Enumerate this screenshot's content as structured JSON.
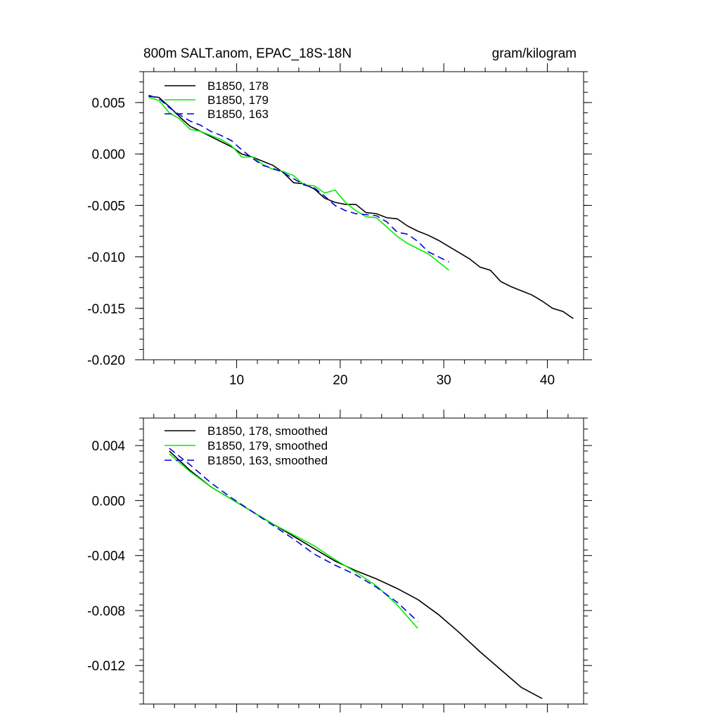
{
  "chart_data": [
    {
      "type": "line",
      "title": "800m SALT.anom, EPAC_18S-18N",
      "units": "gram/kilogram",
      "xlabel": "",
      "ylabel": "",
      "xlim": [
        1,
        43.5
      ],
      "ylim": [
        -0.02,
        0.008
      ],
      "xticks": [
        10,
        20,
        30,
        40
      ],
      "xtick_labels": [
        "10",
        "20",
        "30",
        "40"
      ],
      "yticks": [
        0.005,
        0.0,
        -0.005,
        -0.01,
        -0.015,
        -0.02
      ],
      "ytick_labels": [
        "0.005",
        "0.000",
        "-0.005",
        "-0.010",
        "-0.015",
        "-0.020"
      ],
      "legend_position": "top-left",
      "series": [
        {
          "name": "B1850, 178",
          "color": "#000000",
          "dash": "solid",
          "x": [
            1.5,
            2.5,
            3.5,
            4.5,
            5.5,
            6.5,
            7.5,
            8.5,
            9.5,
            10.5,
            11.5,
            12.5,
            13.5,
            14.5,
            15.5,
            16.5,
            17.5,
            18.5,
            19.5,
            20.5,
            21.5,
            22.5,
            23.5,
            24.5,
            25.5,
            26.5,
            27.5,
            28.5,
            29.5,
            30.5,
            31.5,
            32.5,
            33.5,
            34.5,
            35.5,
            36.5,
            37.5,
            38.5,
            39.5,
            40.5,
            41.5,
            42.5
          ],
          "values": [
            0.0056,
            0.0055,
            0.0046,
            0.0036,
            0.0027,
            0.0022,
            0.0017,
            0.0012,
            0.0007,
            0.0,
            -0.0003,
            -0.0007,
            -0.0011,
            -0.0018,
            -0.0028,
            -0.0029,
            -0.0034,
            -0.0043,
            -0.0047,
            -0.0049,
            -0.0049,
            -0.0057,
            -0.0058,
            -0.0062,
            -0.0063,
            -0.007,
            -0.0075,
            -0.0079,
            -0.0084,
            -0.009,
            -0.0096,
            -0.0102,
            -0.011,
            -0.0113,
            -0.0124,
            -0.0129,
            -0.0133,
            -0.0137,
            -0.0143,
            -0.015,
            -0.0153,
            -0.016
          ]
        },
        {
          "name": "B1850, 179",
          "color": "#00ee00",
          "dash": "solid",
          "x": [
            1.5,
            2.5,
            3.5,
            4.5,
            5.5,
            6.5,
            7.5,
            8.5,
            9.5,
            10.5,
            11.5,
            12.5,
            13.5,
            14.5,
            15.5,
            16.5,
            17.5,
            18.5,
            19.5,
            20.5,
            21.5,
            22.5,
            23.5,
            24.5,
            25.5,
            26.5,
            27.5,
            28.5,
            29.5,
            30.5
          ],
          "values": [
            0.0055,
            0.0052,
            0.004,
            0.0034,
            0.0024,
            0.0022,
            0.0018,
            0.0014,
            0.0008,
            -0.0003,
            -0.0003,
            -0.001,
            -0.0015,
            -0.0017,
            -0.0021,
            -0.003,
            -0.0031,
            -0.0038,
            -0.0035,
            -0.0047,
            -0.0055,
            -0.0061,
            -0.0062,
            -0.0071,
            -0.008,
            -0.0087,
            -0.0092,
            -0.0097,
            -0.0105,
            -0.0113
          ]
        },
        {
          "name": "B1850, 163",
          "color": "#0000dd",
          "dash": "dashed",
          "x": [
            1.5,
            2.5,
            3.5,
            4.5,
            5.5,
            6.5,
            7.5,
            8.5,
            9.5,
            10.5,
            11.5,
            12.5,
            13.5,
            14.5,
            15.5,
            16.5,
            17.5,
            18.5,
            19.5,
            20.5,
            21.5,
            22.5,
            23.5,
            24.5,
            25.5,
            26.5,
            27.5,
            28.5,
            29.5,
            30.5
          ],
          "values": [
            0.0057,
            0.0054,
            0.0045,
            0.0038,
            0.0032,
            0.0028,
            0.0022,
            0.0018,
            0.0013,
            0.0004,
            -0.0004,
            -0.0011,
            -0.0014,
            -0.0018,
            -0.0024,
            -0.003,
            -0.0033,
            -0.0041,
            -0.005,
            -0.0055,
            -0.0058,
            -0.0059,
            -0.006,
            -0.0066,
            -0.0076,
            -0.0078,
            -0.0085,
            -0.0095,
            -0.01,
            -0.0105
          ]
        }
      ],
      "legend": [
        {
          "label": "B1850, 178",
          "color": "#000000",
          "dash": "solid"
        },
        {
          "label": "B1850, 179",
          "color": "#00ee00",
          "dash": "solid"
        },
        {
          "label": "B1850, 163",
          "color": "#0000dd",
          "dash": "dashed"
        }
      ]
    },
    {
      "type": "line",
      "title": "",
      "xlabel": "",
      "ylabel": "",
      "xlim": [
        1,
        43.5
      ],
      "ylim": [
        -0.0148,
        0.006
      ],
      "xticks": [
        10,
        20,
        30,
        40
      ],
      "xtick_labels": [],
      "yticks": [
        0.004,
        0.0,
        -0.004,
        -0.008,
        -0.012
      ],
      "ytick_labels": [
        "0.004",
        "0.000",
        "-0.004",
        "-0.008",
        "-0.012"
      ],
      "legend_position": "top-left",
      "series": [
        {
          "name": "B1850, 178, smoothed",
          "color": "#000000",
          "dash": "solid",
          "x": [
            3.5,
            5.5,
            7.5,
            9.5,
            11.5,
            13.5,
            15.5,
            17.5,
            19.5,
            21.5,
            23.5,
            25.5,
            27.5,
            29.5,
            31.5,
            33.5,
            35.5,
            37.5,
            39.5
          ],
          "values": [
            0.0036,
            0.0022,
            0.001,
            0.0001,
            -0.0008,
            -0.0017,
            -0.0026,
            -0.0035,
            -0.0044,
            -0.0051,
            -0.0057,
            -0.0064,
            -0.0072,
            -0.0083,
            -0.0096,
            -0.011,
            -0.0123,
            -0.0136,
            -0.0144
          ]
        },
        {
          "name": "B1850, 179, smoothed",
          "color": "#00ee00",
          "dash": "solid",
          "x": [
            3.5,
            5.5,
            7.5,
            9.5,
            11.5,
            13.5,
            15.5,
            17.5,
            19.5,
            21.5,
            23.5,
            25.5,
            27.5
          ],
          "values": [
            0.0034,
            0.0021,
            0.001,
            0.0001,
            -0.0008,
            -0.0017,
            -0.0025,
            -0.0033,
            -0.0043,
            -0.0052,
            -0.0062,
            -0.0076,
            -0.0093
          ]
        },
        {
          "name": "B1850, 163, smoothed",
          "color": "#0000dd",
          "dash": "dashed",
          "x": [
            3.5,
            5.5,
            7.5,
            9.5,
            11.5,
            13.5,
            15.5,
            17.5,
            19.5,
            21.5,
            23.5,
            25.5,
            27.5
          ],
          "values": [
            0.0038,
            0.0026,
            0.0013,
            0.0002,
            -0.0008,
            -0.0018,
            -0.0028,
            -0.0039,
            -0.0047,
            -0.0054,
            -0.0063,
            -0.0074,
            -0.0088
          ]
        }
      ],
      "legend": [
        {
          "label": "B1850, 178, smoothed",
          "color": "#000000",
          "dash": "solid"
        },
        {
          "label": "B1850, 179, smoothed",
          "color": "#00ee00",
          "dash": "solid"
        },
        {
          "label": "B1850, 163, smoothed",
          "color": "#0000dd",
          "dash": "dashed"
        }
      ]
    }
  ]
}
